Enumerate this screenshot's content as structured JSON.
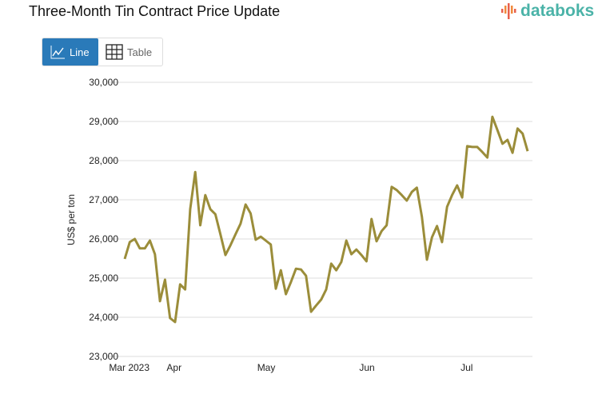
{
  "header": {
    "title": "Three-Month Tin Contract Price Update",
    "logo_text": "databoks"
  },
  "view_toggle": {
    "line_label": "Line",
    "table_label": "Table",
    "active": "Line"
  },
  "colors": {
    "line": "#9b8d3a",
    "active_button": "#2a7ab9",
    "logo": "#4bb3a8"
  },
  "chart_data": {
    "type": "line",
    "title": "Three-Month Tin Contract Price Update",
    "xlabel": "",
    "ylabel": "US$ per ton",
    "ylim": [
      23000,
      30000
    ],
    "yticks": [
      23000,
      24000,
      25000,
      26000,
      27000,
      28000,
      29000,
      30000
    ],
    "ytick_labels": [
      "23,000",
      "24,000",
      "25,000",
      "26,000",
      "27,000",
      "28,000",
      "29,000",
      "30,000"
    ],
    "xticks": [
      {
        "label": "Mar 2023",
        "index": 0.9
      },
      {
        "label": "Apr",
        "index": 9.8
      },
      {
        "label": "May",
        "index": 28.1
      },
      {
        "label": "Jun",
        "index": 48.1
      },
      {
        "label": "Jul",
        "index": 67.9
      }
    ],
    "grid": true,
    "series": [
      {
        "name": "Three-Month Tin Contract",
        "values": [
          25490,
          25920,
          26000,
          25760,
          25760,
          25960,
          25610,
          24410,
          24960,
          23980,
          23880,
          24840,
          24710,
          26760,
          27710,
          26350,
          27120,
          26760,
          26630,
          26120,
          25590,
          25840,
          26120,
          26390,
          26880,
          26650,
          25980,
          26060,
          25960,
          25860,
          24730,
          25200,
          24590,
          24900,
          25240,
          25220,
          25060,
          24140,
          24300,
          24450,
          24710,
          25370,
          25200,
          25410,
          25960,
          25610,
          25730,
          25590,
          25430,
          26510,
          25940,
          26200,
          26350,
          27330,
          27250,
          27120,
          26980,
          27200,
          27310,
          26570,
          25470,
          26040,
          26330,
          25920,
          26820,
          27120,
          27370,
          27060,
          28370,
          28350,
          28350,
          28220,
          28080,
          29120,
          28780,
          28430,
          28530,
          28200,
          28820,
          28690,
          28240
        ]
      }
    ]
  }
}
